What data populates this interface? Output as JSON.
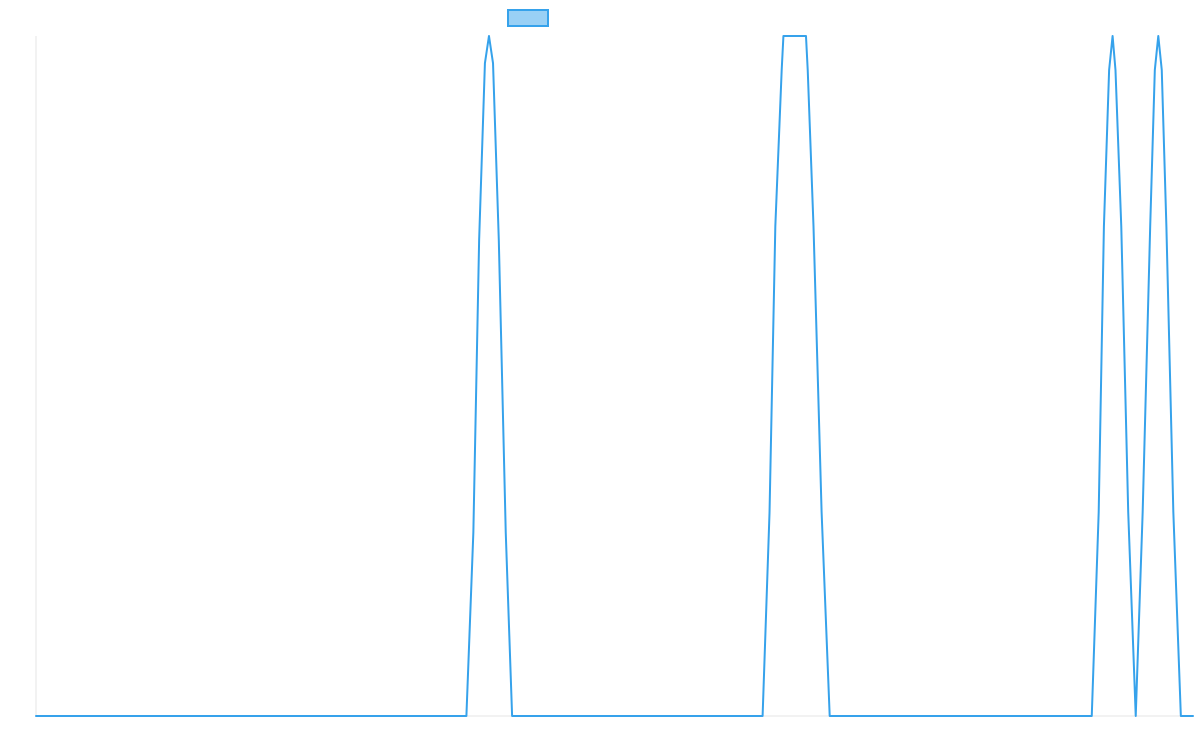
{
  "chart_data": {
    "type": "line",
    "title": "",
    "xlabel": "",
    "ylabel": "",
    "legend": {
      "placement": "top",
      "entries": [
        {
          "label": "",
          "color": "#36a2eb",
          "fill": "#99d0f5"
        }
      ]
    },
    "grid": false,
    "xlim": [
      0,
      1
    ],
    "ylim": [
      0,
      1
    ],
    "series": [
      {
        "color": "#36a2eb",
        "points": [
          [
            0.0,
            0
          ],
          [
            0.372,
            0
          ],
          [
            0.378,
            0.27
          ],
          [
            0.383,
            0.7
          ],
          [
            0.388,
            0.96
          ],
          [
            0.3915,
            1
          ],
          [
            0.395,
            0.96
          ],
          [
            0.4,
            0.7
          ],
          [
            0.406,
            0.27
          ],
          [
            0.4115,
            0
          ],
          [
            0.628,
            0
          ],
          [
            0.634,
            0.3
          ],
          [
            0.639,
            0.72
          ],
          [
            0.6445,
            0.95
          ],
          [
            0.646,
            1
          ],
          [
            0.6655,
            1
          ],
          [
            0.667,
            0.95
          ],
          [
            0.672,
            0.72
          ],
          [
            0.679,
            0.3
          ],
          [
            0.686,
            0
          ],
          [
            0.9125,
            0
          ],
          [
            0.9185,
            0.3
          ],
          [
            0.923,
            0.72
          ],
          [
            0.9275,
            0.95
          ],
          [
            0.9305,
            1
          ],
          [
            0.933,
            0.95
          ],
          [
            0.938,
            0.72
          ],
          [
            0.944,
            0.3
          ],
          [
            0.9505,
            0
          ],
          [
            0.9565,
            0.3
          ],
          [
            0.963,
            0.72
          ],
          [
            0.967,
            0.95
          ],
          [
            0.97,
            1
          ],
          [
            0.973,
            0.95
          ],
          [
            0.977,
            0.72
          ],
          [
            0.983,
            0.3
          ],
          [
            0.9895,
            0
          ],
          [
            1.0,
            0
          ]
        ]
      }
    ]
  }
}
